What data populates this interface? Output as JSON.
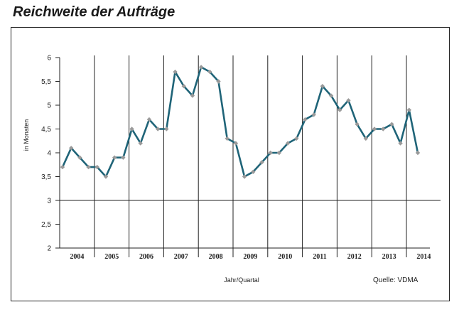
{
  "title": "Reichweite der Aufträge",
  "chart_data": {
    "type": "line",
    "ylabel": "in Monaten",
    "xlabel": "Jahr/Quartal",
    "source": "Quelle: VDMA",
    "ylim": [
      2,
      6
    ],
    "yticks": [
      "6",
      "5,5",
      "5",
      "4,5",
      "4",
      "3,5",
      "3",
      "2,5",
      "2"
    ],
    "reference_line": 3,
    "years": [
      "2004",
      "2005",
      "2006",
      "2007",
      "2008",
      "2009",
      "2010",
      "2011",
      "2012",
      "2013",
      "2014"
    ],
    "series": [
      {
        "values": [
          3.7,
          4.1,
          3.9,
          3.7,
          3.7,
          3.5,
          3.9,
          3.9,
          4.5,
          4.2,
          4.7,
          4.5,
          4.5,
          5.7,
          5.4,
          5.2,
          5.8,
          5.7,
          5.5,
          4.3,
          4.2,
          3.5,
          3.6,
          3.8,
          4.0,
          4.0,
          4.2,
          4.3,
          4.7,
          4.8,
          5.4,
          5.2,
          4.9,
          5.1,
          4.6,
          4.3,
          4.5,
          4.5,
          4.6,
          4.2,
          4.9,
          4.0
        ],
        "color": "#1f6478",
        "marker_color": "#9a9a9a"
      }
    ]
  }
}
